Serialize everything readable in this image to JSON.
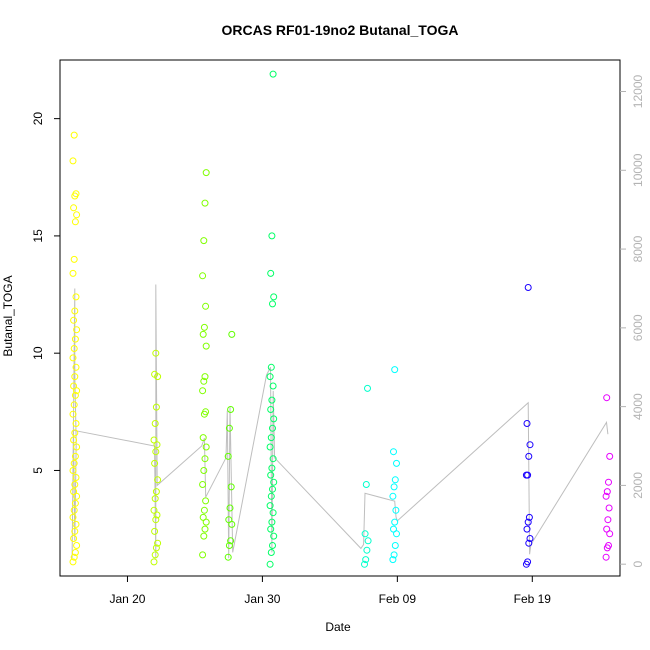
{
  "chart_data": {
    "type": "scatter",
    "title": "ORCAS RF01-19no2 Butanal_TOGA",
    "xlabel": "Date",
    "ylabel": "Butanal_TOGA",
    "x_ticks": [
      {
        "day": 20,
        "label": "Jan 20"
      },
      {
        "day": 30,
        "label": "Jan 30"
      },
      {
        "day": 40,
        "label": "Feb 09"
      },
      {
        "day": 50,
        "label": "Feb 19"
      }
    ],
    "xlim": [
      15.0,
      56.5
    ],
    "ylim": [
      0.5,
      22.5
    ],
    "y_ticks": [
      5,
      10,
      15,
      20
    ],
    "y2lim": [
      -300,
      12800
    ],
    "y2_ticks": [
      0,
      2000,
      4000,
      6000,
      8000,
      10000,
      12000
    ],
    "line_color": "#bebebe",
    "flights": [
      {
        "day": 16.1,
        "color": "#FFFF00",
        "values": [
          1.1,
          1.3,
          1.5,
          1.8,
          2.1,
          2.4,
          2.7,
          3.0,
          3.3,
          3.6,
          3.9,
          4.1,
          4.4,
          4.7,
          5.0,
          5.3,
          5.6,
          6.0,
          6.3,
          6.6,
          7.0,
          7.4,
          7.8,
          8.2,
          8.4,
          8.6,
          9.0,
          9.4,
          9.8,
          10.2,
          10.6,
          11.0,
          11.4,
          11.8,
          12.4,
          13.4,
          14.0,
          15.6,
          15.9,
          16.2,
          16.7,
          16.8,
          18.2,
          19.3
        ]
      },
      {
        "day": 22.1,
        "color": "#BFFF00",
        "values": [
          1.1,
          1.4,
          1.7,
          1.9,
          2.4,
          2.9,
          3.1,
          3.3,
          3.8,
          4.1,
          4.6,
          5.3,
          5.8,
          6.1,
          6.3,
          7.0,
          7.7,
          9.0,
          9.1,
          10.0
        ]
      },
      {
        "day": 25.7,
        "color": "#80FF00",
        "values": [
          1.4,
          2.2,
          2.5,
          2.8,
          3.0,
          3.3,
          3.7,
          4.4,
          5.0,
          5.5,
          6.0,
          6.4,
          7.4,
          7.5,
          8.4,
          8.8,
          9.0,
          10.3,
          10.8,
          11.1,
          12.0,
          13.3,
          14.8,
          16.4,
          17.7
        ]
      },
      {
        "day": 27.6,
        "color": "#60FF00",
        "values": [
          1.3,
          1.8,
          2.0,
          2.7,
          2.9,
          3.4,
          4.3,
          5.6,
          6.8,
          7.6,
          10.8
        ]
      },
      {
        "day": 30.7,
        "color": "#00FF66",
        "values": [
          1.0,
          1.5,
          1.8,
          2.2,
          2.5,
          2.8,
          3.2,
          3.5,
          3.9,
          4.2,
          4.5,
          4.8,
          5.1,
          5.5,
          6.0,
          6.4,
          6.8,
          7.2,
          7.6,
          8.0,
          8.6,
          9.0,
          9.4,
          12.1,
          12.4,
          13.4,
          15.0,
          21.9
        ]
      },
      {
        "day": 37.7,
        "color": "#00FFCC",
        "values": [
          1.0,
          1.2,
          1.6,
          2.0,
          2.3,
          4.4,
          8.5
        ]
      },
      {
        "day": 39.8,
        "color": "#00FFFF",
        "values": [
          1.2,
          1.4,
          1.8,
          2.3,
          2.5,
          2.8,
          3.3,
          3.9,
          4.3,
          4.6,
          5.3,
          5.8,
          9.3
        ]
      },
      {
        "day": 49.7,
        "color": "#1A00FF",
        "values": [
          1.0,
          1.1,
          1.9,
          2.1,
          2.5,
          2.8,
          3.0,
          4.8,
          4.8,
          5.6,
          6.1,
          7.0,
          12.8
        ]
      },
      {
        "day": 55.6,
        "color": "#E600FF",
        "values": [
          1.3,
          1.7,
          1.8,
          2.3,
          2.5,
          2.9,
          3.4,
          3.9,
          4.1,
          4.5,
          5.6,
          8.1
        ]
      }
    ],
    "altitude_trace": [
      {
        "day": 15.9,
        "alt": 150
      },
      {
        "day": 16.1,
        "alt": 7000
      },
      {
        "day": 16.1,
        "alt": 4800
      },
      {
        "day": 16.2,
        "alt": 3100
      },
      {
        "day": 16.1,
        "alt": 600
      },
      {
        "day": 16.0,
        "alt": 3400
      },
      {
        "day": 22.0,
        "alt": 3000
      },
      {
        "day": 22.1,
        "alt": 150
      },
      {
        "day": 22.1,
        "alt": 7100
      },
      {
        "day": 22.2,
        "alt": 2000
      },
      {
        "day": 25.5,
        "alt": 3000
      },
      {
        "day": 25.7,
        "alt": 3200
      },
      {
        "day": 25.8,
        "alt": 1700
      },
      {
        "day": 27.3,
        "alt": 2700
      },
      {
        "day": 27.4,
        "alt": 3900
      },
      {
        "day": 27.5,
        "alt": 150
      },
      {
        "day": 27.6,
        "alt": 4000
      },
      {
        "day": 27.8,
        "alt": 300
      },
      {
        "day": 30.3,
        "alt": 4800
      },
      {
        "day": 30.6,
        "alt": 5000
      },
      {
        "day": 30.7,
        "alt": 300
      },
      {
        "day": 30.8,
        "alt": 4400
      },
      {
        "day": 30.9,
        "alt": 2700
      },
      {
        "day": 37.3,
        "alt": 400
      },
      {
        "day": 37.5,
        "alt": 500
      },
      {
        "day": 37.6,
        "alt": 1800
      },
      {
        "day": 39.8,
        "alt": 1600
      },
      {
        "day": 39.9,
        "alt": 1200
      },
      {
        "day": 40.0,
        "alt": 1100
      },
      {
        "day": 49.7,
        "alt": 4100
      },
      {
        "day": 49.8,
        "alt": 250
      },
      {
        "day": 49.9,
        "alt": 500
      },
      {
        "day": 55.5,
        "alt": 3600
      },
      {
        "day": 55.6,
        "alt": 3300
      }
    ]
  }
}
